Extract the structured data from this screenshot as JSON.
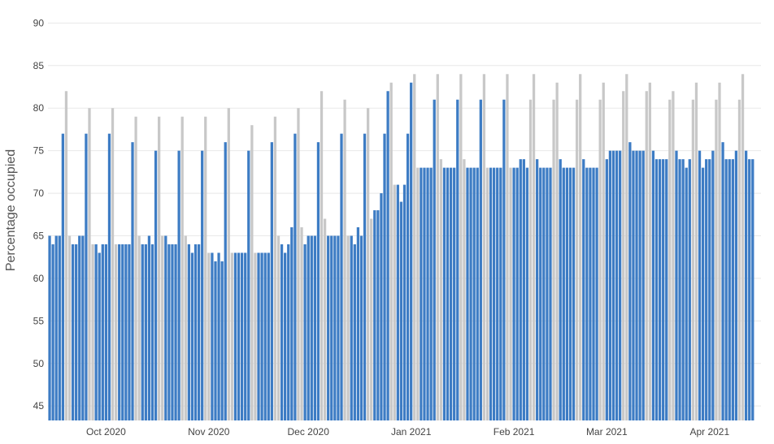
{
  "chart_data": {
    "type": "bar",
    "title": "",
    "xlabel": "",
    "ylabel": "Percentage occupied",
    "ylim": [
      43.3,
      90.8
    ],
    "yticks": [
      45,
      50,
      55,
      60,
      65,
      70,
      75,
      80,
      85,
      90
    ],
    "grid": true,
    "legend": "none",
    "start_date": "2020-09-14",
    "end_date": "2021-04-16",
    "x_ticks": [
      {
        "label": "Oct 2020",
        "date": "2020-10-01"
      },
      {
        "label": "Nov 2020",
        "date": "2020-11-01"
      },
      {
        "label": "Dec 2020",
        "date": "2020-12-01"
      },
      {
        "label": "Jan 2021",
        "date": "2021-01-01"
      },
      {
        "label": "Feb 2021",
        "date": "2021-02-01"
      },
      {
        "label": "Mar 2021",
        "date": "2021-03-01"
      },
      {
        "label": "Apr 2021",
        "date": "2021-04-01"
      }
    ],
    "colors": {
      "weekday": "#3d7cc4",
      "weekend": "#c8c8c8"
    },
    "values": [
      65,
      64,
      65,
      65,
      77,
      82,
      65,
      64,
      64,
      65,
      65,
      77,
      80,
      64,
      64,
      63,
      64,
      64,
      77,
      80,
      64,
      64,
      64,
      64,
      64,
      76,
      79,
      65,
      64,
      64,
      65,
      64,
      75,
      79,
      65,
      65,
      64,
      64,
      64,
      75,
      79,
      65,
      64,
      63,
      64,
      64,
      75,
      79,
      63,
      63,
      62,
      63,
      62,
      76,
      80,
      63,
      63,
      63,
      63,
      63,
      75,
      78,
      63,
      63,
      63,
      63,
      63,
      76,
      79,
      65,
      64,
      63,
      64,
      66,
      77,
      80,
      66,
      64,
      65,
      65,
      65,
      76,
      82,
      67,
      65,
      65,
      65,
      65,
      77,
      81,
      65,
      65,
      64,
      66,
      65,
      77,
      80,
      67,
      68,
      68,
      70,
      77,
      82,
      83,
      71,
      71,
      69,
      71,
      77,
      83,
      84,
      73,
      73,
      73,
      73,
      73,
      81,
      84,
      74,
      73,
      73,
      73,
      73,
      81,
      84,
      74,
      73,
      73,
      73,
      73,
      81,
      84,
      73,
      73,
      73,
      73,
      73,
      81,
      84,
      73,
      73,
      73,
      74,
      74,
      73,
      81,
      84,
      74,
      73,
      73,
      73,
      73,
      81,
      83,
      74,
      73,
      73,
      73,
      73,
      81,
      84,
      74,
      73,
      73,
      73,
      73,
      81,
      83,
      74,
      75,
      75,
      75,
      75,
      82,
      84,
      76,
      75,
      75,
      75,
      75,
      82,
      83,
      75,
      74,
      74,
      74,
      74,
      81,
      82,
      75,
      74,
      74,
      73,
      74,
      81,
      83,
      75,
      73,
      74,
      74,
      75,
      81,
      83,
      76,
      74,
      74,
      74,
      75,
      81,
      84,
      75,
      74,
      74
    ]
  }
}
